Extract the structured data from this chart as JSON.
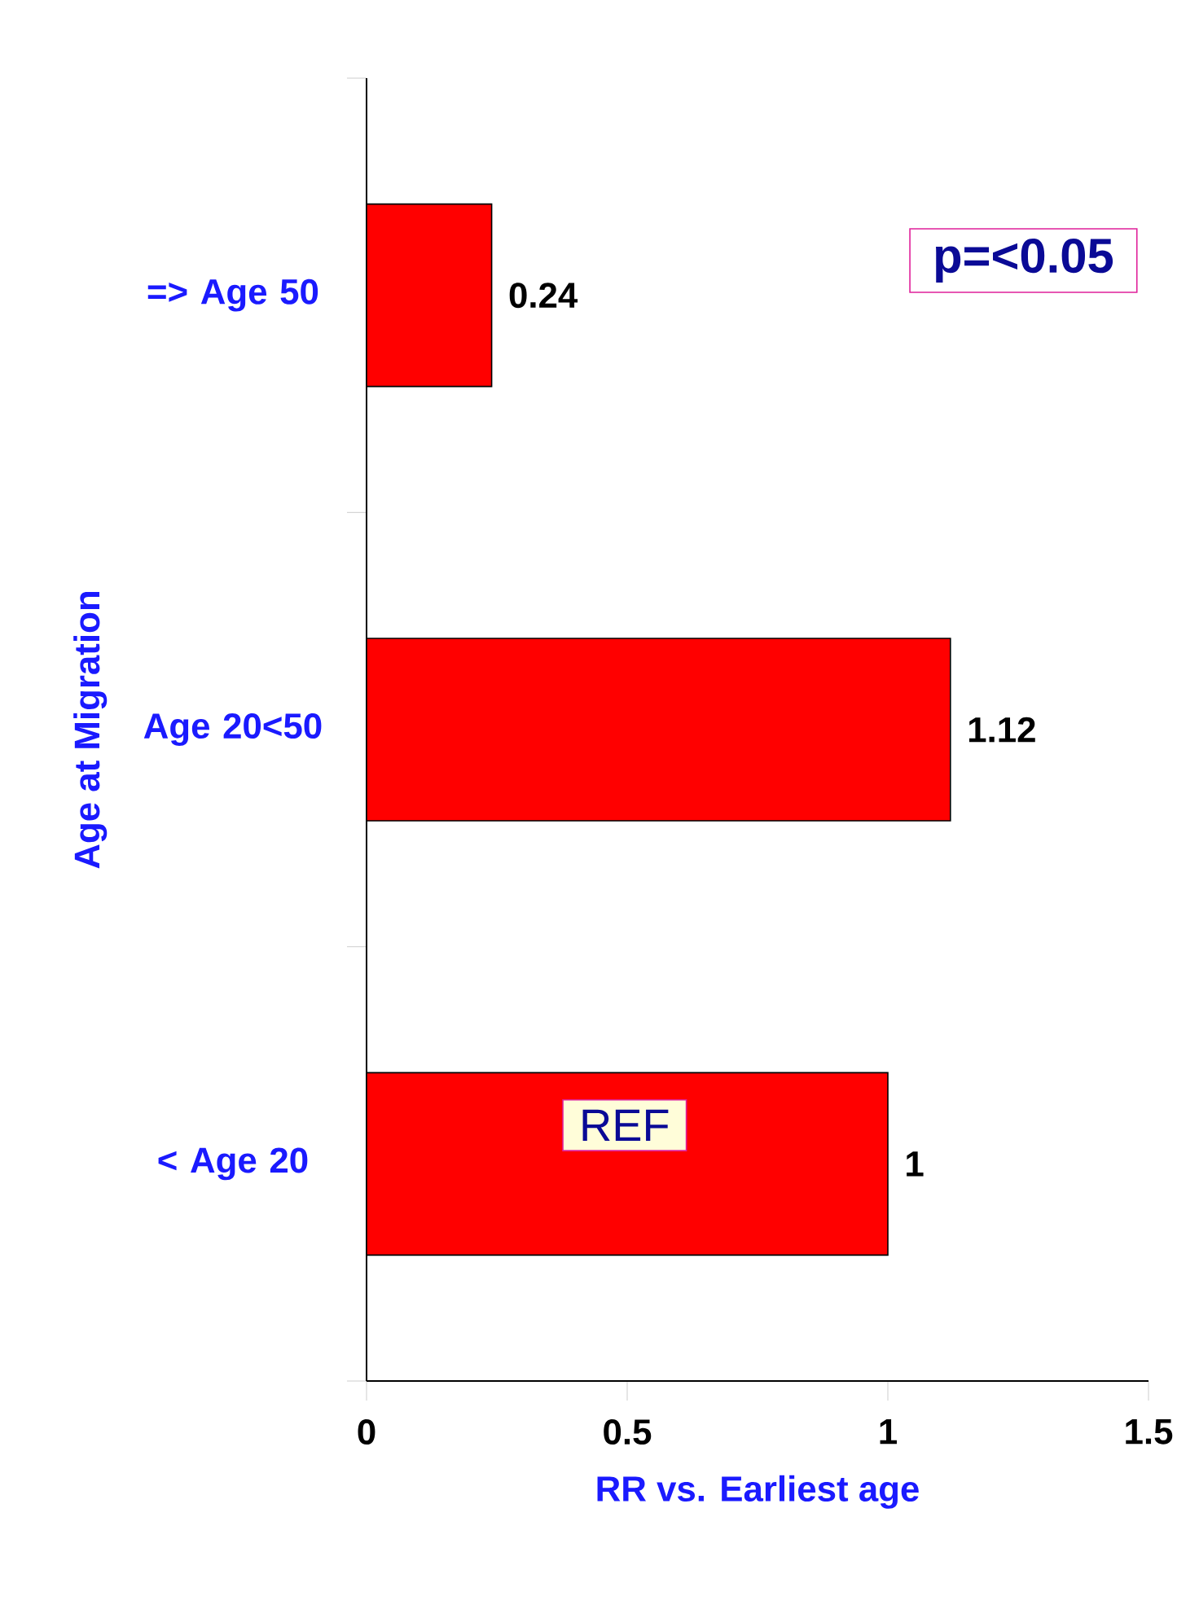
{
  "chart_data": {
    "type": "bar",
    "orientation": "horizontal",
    "categories": [
      "=> Age 50",
      "Age 20<50",
      "< Age 20"
    ],
    "values": [
      0.24,
      1.12,
      1
    ],
    "color": "#ff0000",
    "xlim": [
      0,
      1.5
    ],
    "xticks": [
      0,
      0.5,
      1,
      1.5
    ],
    "xlabel": "RR vs. Earliest age",
    "ylabel": "Age at Migration",
    "data_labels": true,
    "annotations": [
      "p=<0.05",
      "REF"
    ]
  }
}
